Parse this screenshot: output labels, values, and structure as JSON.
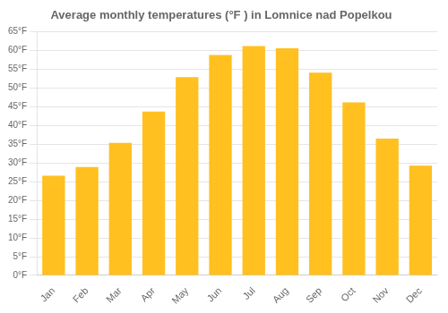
{
  "chart_data": {
    "type": "bar",
    "title": "Average monthly temperatures (°F ) in Lomnice nad Popelkou",
    "categories": [
      "Jan",
      "Feb",
      "Mar",
      "Apr",
      "May",
      "Jun",
      "Jul",
      "Aug",
      "Sep",
      "Oct",
      "Nov",
      "Dec"
    ],
    "values": [
      26.6,
      28.9,
      35.4,
      43.7,
      52.9,
      58.8,
      61.2,
      60.6,
      54.1,
      46.2,
      36.5,
      29.3
    ],
    "color": "#FFC020",
    "ylim": [
      0,
      65
    ],
    "yticks": [
      {
        "value": 0,
        "label": "0°F"
      },
      {
        "value": 5,
        "label": "5°F"
      },
      {
        "value": 10,
        "label": "10°F"
      },
      {
        "value": 15,
        "label": "15°F"
      },
      {
        "value": 20,
        "label": "20°F"
      },
      {
        "value": 25,
        "label": "25°F"
      },
      {
        "value": 30,
        "label": "30°F"
      },
      {
        "value": 35,
        "label": "35°F"
      },
      {
        "value": 40,
        "label": "40°F"
      },
      {
        "value": 45,
        "label": "45°F"
      },
      {
        "value": 50,
        "label": "50°F"
      },
      {
        "value": 55,
        "label": "55°F"
      },
      {
        "value": 60,
        "label": "60°F"
      },
      {
        "value": 65,
        "label": "65°F"
      }
    ],
    "grid": true
  }
}
